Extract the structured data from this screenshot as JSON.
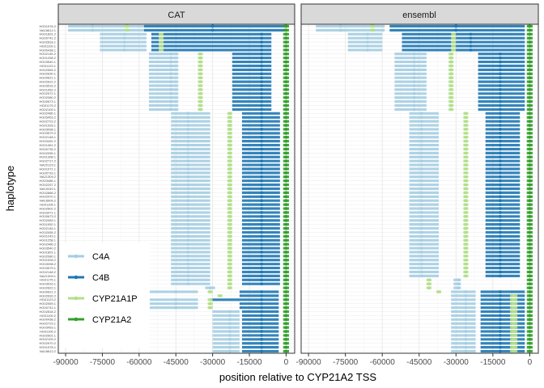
{
  "chart_data": {
    "type": "segment-dot",
    "xlabel": "position relative to CYP21A2 TSS",
    "ylabel": "haplotype",
    "xlim": [
      -93000,
      3500
    ],
    "xticks": [
      -90000,
      -75000,
      -60000,
      -45000,
      -30000,
      -15000,
      0
    ],
    "xtick_labels": [
      "-90000",
      "-75000",
      "-60000",
      "-45000",
      "-30000",
      "-15000",
      "0"
    ],
    "grid": true,
    "legend_position": "bottom-left",
    "series": [
      {
        "name": "C4A",
        "color": "#a6cee3"
      },
      {
        "name": "C4B",
        "color": "#1f78b4"
      },
      {
        "name": "CYP21A1P",
        "color": "#b2df8a"
      },
      {
        "name": "CYP21A2",
        "color": "#33a02c"
      }
    ],
    "haplotype_labels": [
      "HG01978.2",
      "NA18612.1",
      "HG01891.2",
      "HG00741.2",
      "HG02818.1",
      "HG01109.1",
      "HG00438.1",
      "HG02145.2",
      "HG01258.2",
      "HG03540.1",
      "HG01123.1",
      "HG02559.2",
      "HG02630.1",
      "HG00621.1",
      "HG02622.2",
      "HG03516.2",
      "HG01952.2",
      "HG02572.1",
      "HG02080.2",
      "HG00673.1",
      "HG01175.2",
      "HG02109.1",
      "HG02486.1",
      "HG03453.2",
      "HG02723.2",
      "HG01928.1",
      "HG03098.1",
      "HG03579.2",
      "HG02148.1",
      "HG03492.2",
      "HG01361.2",
      "HG00735.2",
      "HG02055.1",
      "HG01358.1",
      "HG02717.2",
      "NA20129.1",
      "HG01071.1",
      "HG00733.1",
      "NA21309.2",
      "HG03486.1",
      "HG02257.2",
      "NA19240.1",
      "HG02886.2",
      "HG02970.1",
      "NA18906.2",
      "HG01106.1",
      "HG02602.2",
      "HG03471.1",
      "HG00673.2",
      "HG02083.1",
      "HG01952.1",
      "HG02145.1",
      "HG02055.2",
      "HG01243.1",
      "HG01258.1",
      "HG02486.2",
      "HG03540.2",
      "HG01891.1",
      "HG02080.1",
      "HG01928.2",
      "HG03098.2",
      "HG03579.1",
      "HG02148.2",
      "NA21309.1",
      "HG01175.1",
      "HG03516.1",
      "HG02622.1",
      "HG00621.2",
      "HG02630.2",
      "HG01123.2",
      "HG02559.1",
      "HG00741.1",
      "HG02818.2",
      "HG01109.2",
      "HG00438.2",
      "HG02723.1",
      "HG03453.1",
      "HG01106.2",
      "HG02602.1",
      "HG02109.2",
      "HG02970.2",
      "HG01978.1",
      "NA18612.2"
    ],
    "facets": [
      {
        "name": "CAT",
        "groups": [
          {
            "start": 0,
            "end": 2,
            "genes": [
              {
                "gene": "C4A",
                "from": -89000,
                "to": -58000,
                "point": -79000
              },
              {
                "gene": "C4B",
                "from": -58000,
                "to": -300,
                "point": -30000
              },
              {
                "gene": "CYP21A1P",
                "from": -66000,
                "to": -64000,
                "point": -65000
              },
              {
                "gene": "CYP21A2",
                "from": -1200,
                "to": 1200,
                "point": 0
              }
            ]
          },
          {
            "start": 2,
            "end": 7,
            "genes": [
              {
                "gene": "C4A",
                "from": -76000,
                "to": -57000,
                "point": -66000
              },
              {
                "gene": "C4B",
                "from": -55000,
                "to": -6000,
                "point": -10000
              },
              {
                "gene": "CYP21A1P",
                "from": -52000,
                "to": -50000,
                "point": -51000
              },
              {
                "gene": "CYP21A2",
                "from": -1200,
                "to": 1200,
                "point": 0
              }
            ]
          },
          {
            "start": 7,
            "end": 16,
            "genes": [
              {
                "gene": "C4A",
                "from": -56000,
                "to": -44000,
                "point": -47000
              },
              {
                "gene": "C4B",
                "from": -22000,
                "to": -6000,
                "point": -10000
              },
              {
                "gene": "CYP21A1P",
                "from": -36000,
                "to": -34000,
                "point": -35000
              },
              {
                "gene": "CYP21A2",
                "from": -1200,
                "to": 1200,
                "point": 0
              }
            ]
          },
          {
            "start": 16,
            "end": 22,
            "genes": [
              {
                "gene": "C4A",
                "from": -56000,
                "to": -44000,
                "point": -47000
              },
              {
                "gene": "C4B",
                "from": -22000,
                "to": -6000,
                "point": -10000
              },
              {
                "gene": "CYP21A1P",
                "from": -36000,
                "to": -34000,
                "point": -35000
              },
              {
                "gene": "CYP21A2",
                "from": -1200,
                "to": 1200,
                "point": 0
              }
            ]
          },
          {
            "start": 22,
            "end": 43,
            "genes": [
              {
                "gene": "C4A",
                "from": -47000,
                "to": -31000,
                "point": -40000
              },
              {
                "gene": "C4B",
                "from": -18000,
                "to": -2500,
                "point": -10000
              },
              {
                "gene": "CYP21A1P",
                "from": -24000,
                "to": -22000,
                "point": -23000
              },
              {
                "gene": "CYP21A2",
                "from": -1200,
                "to": 1200,
                "point": 0
              }
            ]
          },
          {
            "start": 43,
            "end": 66,
            "genes": [
              {
                "gene": "C4A",
                "from": -47000,
                "to": -31000,
                "point": -40000
              },
              {
                "gene": "C4B",
                "from": -18000,
                "to": -2500,
                "point": -10000
              },
              {
                "gene": "CYP21A1P",
                "from": -24000,
                "to": -22000,
                "point": -23000
              },
              {
                "gene": "CYP21A2",
                "from": -1200,
                "to": 1200,
                "point": 0
              }
            ]
          },
          {
            "start": 66,
            "end": 67,
            "genes": [
              {
                "gene": "C4A",
                "from": -33000,
                "to": -29000,
                "point": -31000
              },
              {
                "gene": "CYP21A1P",
                "from": -24000,
                "to": -22000,
                "point": -23000
              },
              {
                "gene": "CYP21A2",
                "from": -1200,
                "to": 1200,
                "point": 0
              }
            ]
          },
          {
            "start": 67,
            "end": 68,
            "genes": [
              {
                "gene": "C4A",
                "from": -57000,
                "to": -36000,
                "point": -45000
              },
              {
                "gene": "C4B",
                "from": -19000,
                "to": -3000,
                "point": -10000
              },
              {
                "gene": "CYP21A1P",
                "from": -32000,
                "to": -30000,
                "point": -31000
              },
              {
                "gene": "CYP21A2",
                "from": -1200,
                "to": 1200,
                "point": 0
              }
            ]
          },
          {
            "start": 68,
            "end": 69,
            "genes": [
              {
                "gene": "C4B",
                "from": -19000,
                "to": -3000,
                "point": -10000
              },
              {
                "gene": "CYP21A1P",
                "from": -28000,
                "to": -26000,
                "point": -27000
              },
              {
                "gene": "CYP21A2",
                "from": -1200,
                "to": 1200,
                "point": 0
              }
            ]
          },
          {
            "start": 69,
            "end": 70,
            "genes": [
              {
                "gene": "C4A",
                "from": -57000,
                "to": -36000,
                "point": -45000
              },
              {
                "gene": "C4B",
                "from": -31000,
                "to": -3000,
                "point": -10000
              },
              {
                "gene": "CYP21A1P",
                "from": -32000,
                "to": -30000,
                "point": -31000
              },
              {
                "gene": "CYP21A2",
                "from": -1200,
                "to": 1200,
                "point": 0
              }
            ]
          },
          {
            "start": 70,
            "end": 72,
            "genes": [
              {
                "gene": "C4A",
                "from": -57000,
                "to": -36000,
                "point": -45000
              },
              {
                "gene": "C4B",
                "from": -19000,
                "to": -3000,
                "point": -10000
              },
              {
                "gene": "CYP21A1P",
                "from": -32000,
                "to": -30000,
                "point": -31000
              },
              {
                "gene": "CYP21A2",
                "from": -1200,
                "to": 1200,
                "point": 0
              }
            ]
          },
          {
            "start": 72,
            "end": 83,
            "genes": [
              {
                "gene": "C4A",
                "from": -30000,
                "to": -19000,
                "point": -23000
              },
              {
                "gene": "C4B",
                "from": -18000,
                "to": -3000,
                "point": -10000
              },
              {
                "gene": "CYP21A2",
                "from": -1200,
                "to": 1200,
                "point": 0
              }
            ]
          }
        ]
      },
      {
        "name": "ensembl",
        "groups": [
          {
            "start": 0,
            "end": 2,
            "genes": [
              {
                "gene": "C4A",
                "from": -87000,
                "to": -59000,
                "point": -77000
              },
              {
                "gene": "C4B",
                "from": -57000,
                "to": -2000,
                "point": -30000
              },
              {
                "gene": "CYP21A1P",
                "from": -65000,
                "to": -63000,
                "point": -64000
              },
              {
                "gene": "CYP21A2",
                "from": -1200,
                "to": 1200,
                "point": 0
              }
            ]
          },
          {
            "start": 2,
            "end": 7,
            "genes": [
              {
                "gene": "C4A",
                "from": -74000,
                "to": -60000,
                "point": -66000
              },
              {
                "gene": "C4B",
                "from": -52000,
                "to": -2000,
                "point": -24000
              },
              {
                "gene": "CYP21A1P",
                "from": -32000,
                "to": -30000,
                "point": -31000
              },
              {
                "gene": "CYP21A2",
                "from": -1200,
                "to": 1200,
                "point": 0
              }
            ]
          },
          {
            "start": 7,
            "end": 16,
            "genes": [
              {
                "gene": "C4A",
                "from": -55000,
                "to": -42000,
                "point": -47000
              },
              {
                "gene": "C4B",
                "from": -21000,
                "to": -2000,
                "point": -12000
              },
              {
                "gene": "CYP21A1P",
                "from": -33000,
                "to": -31000,
                "point": -32000
              },
              {
                "gene": "CYP21A2",
                "from": -1200,
                "to": 1200,
                "point": 0
              }
            ]
          },
          {
            "start": 16,
            "end": 22,
            "genes": [
              {
                "gene": "C4A",
                "from": -55000,
                "to": -42000,
                "point": -47000
              },
              {
                "gene": "C4B",
                "from": -21000,
                "to": -2000,
                "point": -12000
              },
              {
                "gene": "CYP21A1P",
                "from": -33000,
                "to": -31000,
                "point": -32000
              },
              {
                "gene": "CYP21A2",
                "from": -1200,
                "to": 1200,
                "point": 0
              }
            ]
          },
          {
            "start": 22,
            "end": 43,
            "genes": [
              {
                "gene": "C4A",
                "from": -49000,
                "to": -37000,
                "point": -44000
              },
              {
                "gene": "C4B",
                "from": -18000,
                "to": -4000,
                "point": -12000
              },
              {
                "gene": "CYP21A1P",
                "from": -27000,
                "to": -25000,
                "point": -26000
              },
              {
                "gene": "CYP21A2",
                "from": -1200,
                "to": 1200,
                "point": 0
              }
            ]
          },
          {
            "start": 43,
            "end": 64,
            "genes": [
              {
                "gene": "C4A",
                "from": -49000,
                "to": -37000,
                "point": -44000
              },
              {
                "gene": "C4B",
                "from": -18000,
                "to": -4000,
                "point": -12000
              },
              {
                "gene": "CYP21A1P",
                "from": -27000,
                "to": -25000,
                "point": -26000
              },
              {
                "gene": "CYP21A2",
                "from": -1200,
                "to": 1200,
                "point": 0
              }
            ]
          },
          {
            "start": 64,
            "end": 67,
            "genes": [
              {
                "gene": "C4A",
                "from": -31000,
                "to": -28000,
                "point": -29000
              },
              {
                "gene": "CYP21A1P",
                "from": -42000,
                "to": -40000,
                "point": -41000
              },
              {
                "gene": "CYP21A2",
                "from": -1200,
                "to": 1200,
                "point": 0
              }
            ]
          },
          {
            "start": 67,
            "end": 68,
            "genes": [
              {
                "gene": "C4A",
                "from": -32000,
                "to": -22000,
                "point": -26000
              },
              {
                "gene": "C4B",
                "from": -20000,
                "to": -2000,
                "point": -12000
              },
              {
                "gene": "CYP21A1P",
                "from": -38000,
                "to": -36000,
                "point": -37000
              },
              {
                "gene": "CYP21A2",
                "from": -1200,
                "to": 1200,
                "point": 0
              }
            ]
          },
          {
            "start": 68,
            "end": 72,
            "genes": [
              {
                "gene": "C4A",
                "from": -32000,
                "to": -22000,
                "point": -26000
              },
              {
                "gene": "C4B",
                "from": -20000,
                "to": -2000,
                "point": -12000
              },
              {
                "gene": "CYP21A1P",
                "from": -8000,
                "to": -5000,
                "point": -6500
              },
              {
                "gene": "CYP21A2",
                "from": -1200,
                "to": 1200,
                "point": 0
              }
            ]
          },
          {
            "start": 72,
            "end": 83,
            "genes": [
              {
                "gene": "C4A",
                "from": -32000,
                "to": -22000,
                "point": -26000
              },
              {
                "gene": "C4B",
                "from": -20000,
                "to": -2000,
                "point": -12000
              },
              {
                "gene": "CYP21A1P",
                "from": -8000,
                "to": -5000,
                "point": -6500
              },
              {
                "gene": "CYP21A2",
                "from": -1200,
                "to": 1200,
                "point": 0
              }
            ]
          }
        ]
      }
    ]
  }
}
